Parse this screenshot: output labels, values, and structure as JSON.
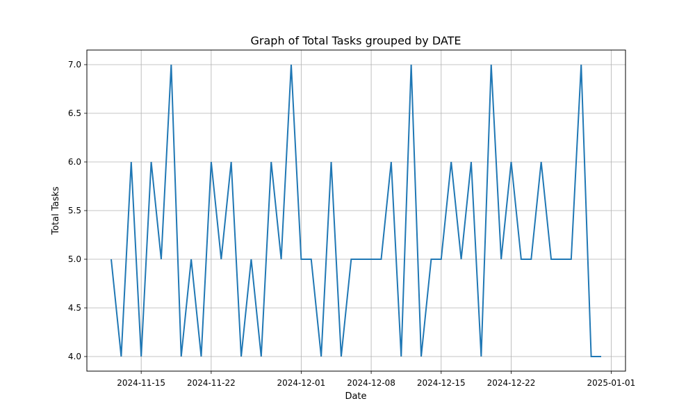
{
  "chart_data": {
    "type": "line",
    "title": "Graph of Total Tasks grouped by DATE",
    "xlabel": "Date",
    "ylabel": "Total Tasks",
    "x_ticks": [
      "2024-11-15",
      "2024-11-22",
      "2024-12-01",
      "2024-12-08",
      "2024-12-15",
      "2024-12-22",
      "2025-01-01"
    ],
    "y_ticks": [
      "4.0",
      "4.5",
      "5.0",
      "5.5",
      "6.0",
      "6.5",
      "7.0"
    ],
    "ylim": [
      3.85,
      7.15
    ],
    "xlim": [
      "2024-11-08",
      "2024-12-31"
    ],
    "grid": true,
    "colors": {
      "line": "#1f77b4",
      "grid": "#b0b0b0",
      "axes": "#000000"
    },
    "series": [
      {
        "x": [
          "2024-11-12",
          "2024-11-13",
          "2024-11-14",
          "2024-11-15",
          "2024-11-16",
          "2024-11-17",
          "2024-11-18",
          "2024-11-19",
          "2024-11-20",
          "2024-11-21",
          "2024-11-22",
          "2024-11-23",
          "2024-11-24",
          "2024-11-25",
          "2024-11-26",
          "2024-11-27",
          "2024-11-28",
          "2024-11-29",
          "2024-11-30",
          "2024-12-01",
          "2024-12-02",
          "2024-12-03",
          "2024-12-04",
          "2024-12-05",
          "2024-12-06",
          "2024-12-07",
          "2024-12-08",
          "2024-12-09",
          "2024-12-10",
          "2024-12-11",
          "2024-12-12",
          "2024-12-13",
          "2024-12-14",
          "2024-12-15",
          "2024-12-16",
          "2024-12-17",
          "2024-12-18",
          "2024-12-19",
          "2024-12-20",
          "2024-12-21",
          "2024-12-22",
          "2024-12-23",
          "2024-12-24",
          "2024-12-25",
          "2024-12-26",
          "2024-12-27",
          "2024-12-28",
          "2024-12-29",
          "2024-12-30",
          "2024-12-31"
        ],
        "values": [
          5,
          4,
          6,
          4,
          6,
          5,
          7,
          4,
          5,
          4,
          6,
          5,
          6,
          4,
          5,
          4,
          6,
          5,
          7,
          5,
          5,
          4,
          6,
          4,
          5,
          5,
          5,
          5,
          6,
          4,
          7,
          4,
          5,
          5,
          6,
          5,
          6,
          4,
          7,
          5,
          6,
          5,
          5,
          6,
          5,
          5,
          5,
          7,
          4,
          4
        ]
      }
    ]
  }
}
